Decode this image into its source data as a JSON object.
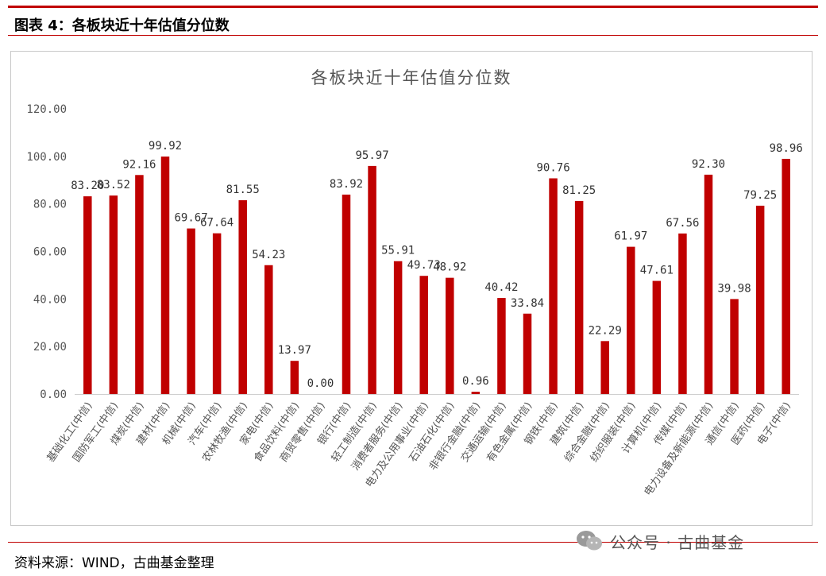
{
  "header": {
    "title": "图表 4：各板块近十年估值分位数"
  },
  "source": {
    "text": "资料来源：WIND，古曲基金整理"
  },
  "watermark": {
    "text": "公众号 · 古曲基金"
  },
  "colors": {
    "bar": "#c00000",
    "accent": "#c00000"
  },
  "chart_data": {
    "type": "bar",
    "title": "各板块近十年估值分位数",
    "ylim": [
      0,
      120
    ],
    "yticks": [
      "0.00",
      "20.00",
      "40.00",
      "60.00",
      "80.00",
      "100.00",
      "120.00"
    ],
    "grid": false,
    "legend": "none",
    "categories": [
      "基础化工(中信)",
      "国防军工(中信)",
      "煤炭(中信)",
      "建材(中信)",
      "机械(中信)",
      "汽车(中信)",
      "农林牧渔(中信)",
      "家电(中信)",
      "食品饮料(中信)",
      "商贸零售(中信)",
      "银行(中信)",
      "轻工制造(中信)",
      "消费者服务(中信)",
      "电力及公用事业(中信)",
      "石油石化(中信)",
      "非银行金融(中信)",
      "交通运输(中信)",
      "有色金属(中信)",
      "钢铁(中信)",
      "建筑(中信)",
      "综合金融(中信)",
      "纺织服装(中信)",
      "计算机(中信)",
      "传媒(中信)",
      "电力设备及新能源(中信)",
      "通信(中信)",
      "医药(中信)",
      "电子(中信)"
    ],
    "values": [
      83.2,
      83.52,
      92.16,
      99.92,
      69.67,
      67.64,
      81.55,
      54.23,
      13.97,
      0.0,
      83.92,
      95.97,
      55.91,
      49.73,
      48.92,
      0.96,
      40.42,
      33.84,
      90.76,
      81.25,
      22.29,
      61.97,
      47.61,
      67.56,
      92.3,
      39.98,
      79.25,
      98.96
    ],
    "labels": [
      "83.20",
      "83.52",
      "92.16",
      "99.92",
      "69.67",
      "67.64",
      "81.55",
      "54.23",
      "13.97",
      "0.00",
      "83.92",
      "95.97",
      "55.91",
      "49.73",
      "48.92",
      "0.96",
      "40.42",
      "33.84",
      "90.76",
      "81.25",
      "22.29",
      "61.97",
      "47.61",
      "67.56",
      "92.30",
      "39.98",
      "79.25",
      "98.96"
    ]
  }
}
